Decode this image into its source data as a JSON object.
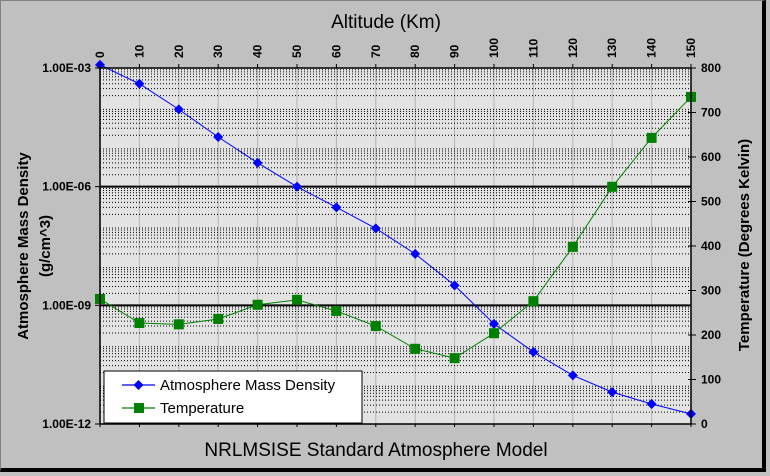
{
  "chart_data": {
    "type": "line",
    "title": "NRLMSISE Standard Atmosphere Model",
    "xlabel": "Altitude (Km)",
    "ylabel": "Atmosphere Mass Density\n(g/cm^3)",
    "y2label": "Temperature (Degrees Kelvin)",
    "x": [
      0,
      10,
      20,
      30,
      40,
      50,
      60,
      70,
      80,
      90,
      100,
      110,
      120,
      130,
      140,
      150
    ],
    "x_tick_labels": [
      "0",
      "10",
      "20",
      "30",
      "40",
      "50",
      "60",
      "70",
      "80",
      "90",
      "100",
      "110",
      "120",
      "130",
      "140",
      "150"
    ],
    "xlim": [
      0,
      150
    ],
    "y_scale": "log",
    "ylim": [
      1e-12,
      0.001
    ],
    "y_tick_labels": [
      "1.00E-03",
      "1.00E-06",
      "1.00E-09",
      "1.00E-12"
    ],
    "y2lim": [
      0,
      800
    ],
    "y2_tick_labels": [
      "800",
      "700",
      "600",
      "500",
      "400",
      "300",
      "200",
      "100",
      "0"
    ],
    "grid": true,
    "legend_position": "lower-left",
    "series": [
      {
        "name": "Atmosphere Mass Density",
        "axis": "left",
        "color": "#0000ff",
        "marker": "diamond",
        "values": [
          0.0012,
          0.0004,
          9e-05,
          1.8e-05,
          4e-06,
          1e-06,
          3e-07,
          8.8e-08,
          2e-08,
          3.2e-09,
          3.4e-10,
          6.6e-11,
          1.7e-11,
          6.4e-12,
          3.2e-12,
          1.8e-12
        ]
      },
      {
        "name": "Temperature",
        "axis": "right",
        "color": "#008000",
        "marker": "square",
        "values": [
          281,
          227,
          224,
          236,
          268,
          279,
          254,
          220,
          169,
          148,
          204,
          276,
          398,
          533,
          643,
          735
        ]
      }
    ]
  },
  "labels": {
    "top_axis_title": "Altitude (Km)",
    "left_axis_line1": "Atmosphere Mass Density",
    "left_axis_line2": "(g/cm^3)",
    "right_axis_title": "Temperature (Degrees Kelvin)",
    "bottom_title": "NRLMSISE Standard Atmosphere Model",
    "legend_density": "Atmosphere Mass Density",
    "legend_temperature": "Temperature"
  }
}
